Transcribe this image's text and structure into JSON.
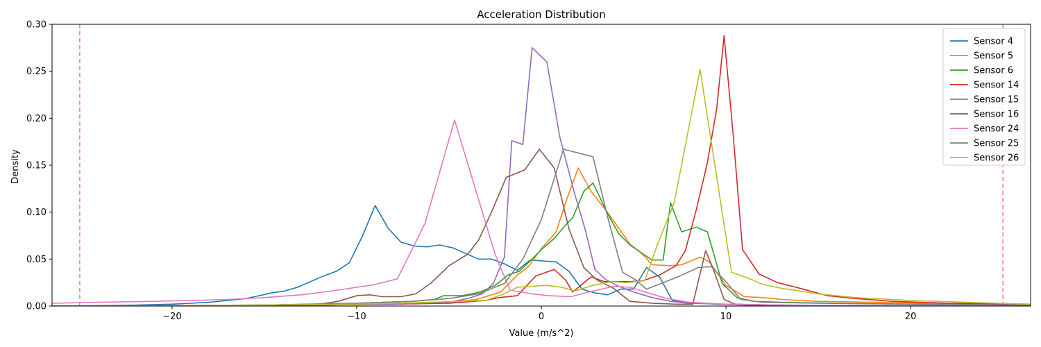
{
  "chart_data": {
    "type": "line",
    "title": "Acceleration Distribution",
    "xlabel": "Value (m/s^2)",
    "ylabel": "Density",
    "xlim": [
      -26.5,
      26.5
    ],
    "ylim": [
      0,
      0.3
    ],
    "xticks": [
      -20,
      -10,
      0,
      10,
      20
    ],
    "xtick_labels": [
      "−20",
      "−10",
      "0",
      "10",
      "20"
    ],
    "yticks": [
      0,
      0.05,
      0.1,
      0.15,
      0.2,
      0.25,
      0.3
    ],
    "ytick_labels": [
      "0.00",
      "0.05",
      "0.10",
      "0.15",
      "0.20",
      "0.25",
      "0.30"
    ],
    "grid": false,
    "legend_position": "top-right",
    "reference_lines": [
      {
        "x": -25,
        "color": "#f0807f",
        "style": "dashed"
      },
      {
        "x": 25,
        "color": "#f0807f",
        "style": "dashed"
      }
    ],
    "series": [
      {
        "name": "Sensor 4",
        "color": "#1f77b4",
        "points": [
          [
            -26.5,
            0.0
          ],
          [
            -22,
            0.001
          ],
          [
            -20,
            0.002
          ],
          [
            -18,
            0.004
          ],
          [
            -17,
            0.006
          ],
          [
            -16,
            0.008
          ],
          [
            -15.3,
            0.011
          ],
          [
            -14.6,
            0.014
          ],
          [
            -13.9,
            0.016
          ],
          [
            -13.2,
            0.02
          ],
          [
            -12.5,
            0.026
          ],
          [
            -11.8,
            0.032
          ],
          [
            -11.1,
            0.037
          ],
          [
            -10.4,
            0.046
          ],
          [
            -9.7,
            0.074
          ],
          [
            -9.0,
            0.107
          ],
          [
            -8.3,
            0.083
          ],
          [
            -7.6,
            0.068
          ],
          [
            -6.9,
            0.064
          ],
          [
            -6.2,
            0.063
          ],
          [
            -5.5,
            0.065
          ],
          [
            -4.8,
            0.062
          ],
          [
            -4.1,
            0.056
          ],
          [
            -3.4,
            0.05
          ],
          [
            -2.7,
            0.05
          ],
          [
            -2.0,
            0.045
          ],
          [
            -1.3,
            0.038
          ],
          [
            -0.6,
            0.049
          ],
          [
            0.1,
            0.048
          ],
          [
            0.8,
            0.047
          ],
          [
            1.5,
            0.037
          ],
          [
            2.2,
            0.018
          ],
          [
            2.9,
            0.014
          ],
          [
            3.6,
            0.012
          ],
          [
            4.3,
            0.018
          ],
          [
            5.0,
            0.018
          ],
          [
            5.7,
            0.041
          ],
          [
            6.4,
            0.031
          ],
          [
            7.1,
            0.006
          ],
          [
            7.8,
            0.004
          ],
          [
            8.5,
            0.003
          ],
          [
            9.5,
            0.002
          ],
          [
            11,
            0.001
          ],
          [
            15,
            0.0
          ],
          [
            26.5,
            0.0
          ]
        ]
      },
      {
        "name": "Sensor 5",
        "color": "#ff7f0e",
        "points": [
          [
            -26.5,
            0.0
          ],
          [
            -12,
            0.001
          ],
          [
            -8,
            0.002
          ],
          [
            -5,
            0.004
          ],
          [
            -3.5,
            0.007
          ],
          [
            -2.2,
            0.015
          ],
          [
            -1.3,
            0.033
          ],
          [
            -0.7,
            0.042
          ],
          [
            0,
            0.061
          ],
          [
            0.8,
            0.079
          ],
          [
            1.4,
            0.115
          ],
          [
            2.0,
            0.147
          ],
          [
            2.7,
            0.122
          ],
          [
            3.5,
            0.102
          ],
          [
            4.2,
            0.083
          ],
          [
            4.8,
            0.066
          ],
          [
            5.5,
            0.055
          ],
          [
            6.0,
            0.044
          ],
          [
            7.0,
            0.043
          ],
          [
            7.6,
            0.044
          ],
          [
            8.6,
            0.052
          ],
          [
            9.1,
            0.047
          ],
          [
            10,
            0.022
          ],
          [
            11,
            0.01
          ],
          [
            12,
            0.009
          ],
          [
            13,
            0.007
          ],
          [
            15,
            0.005
          ],
          [
            18,
            0.004
          ],
          [
            21,
            0.003
          ],
          [
            23,
            0.002
          ],
          [
            26.5,
            0.001
          ]
        ]
      },
      {
        "name": "Sensor 6",
        "color": "#2ca02c",
        "points": [
          [
            -26.5,
            0.0
          ],
          [
            -15,
            0.001
          ],
          [
            -10,
            0.003
          ],
          [
            -7,
            0.005
          ],
          [
            -5.8,
            0.007
          ],
          [
            -5.3,
            0.011
          ],
          [
            -4.3,
            0.011
          ],
          [
            -3.3,
            0.015
          ],
          [
            -2.5,
            0.022
          ],
          [
            -1.8,
            0.033
          ],
          [
            -1.2,
            0.037
          ],
          [
            -0.5,
            0.05
          ],
          [
            0,
            0.06
          ],
          [
            0.7,
            0.072
          ],
          [
            1.3,
            0.086
          ],
          [
            1.7,
            0.094
          ],
          [
            2.3,
            0.122
          ],
          [
            2.8,
            0.131
          ],
          [
            3.6,
            0.098
          ],
          [
            4.2,
            0.077
          ],
          [
            4.8,
            0.065
          ],
          [
            5.4,
            0.057
          ],
          [
            6.0,
            0.049
          ],
          [
            6.6,
            0.049
          ],
          [
            7.0,
            0.11
          ],
          [
            7.6,
            0.079
          ],
          [
            8.4,
            0.084
          ],
          [
            9.0,
            0.079
          ],
          [
            9.8,
            0.024
          ],
          [
            10.6,
            0.009
          ],
          [
            11.5,
            0.005
          ],
          [
            13,
            0.004
          ],
          [
            16,
            0.003
          ],
          [
            20,
            0.002
          ],
          [
            26.5,
            0.001
          ]
        ]
      },
      {
        "name": "Sensor 14",
        "color": "#d62728",
        "points": [
          [
            -26.5,
            0.0
          ],
          [
            -12,
            0.001
          ],
          [
            -8,
            0.002
          ],
          [
            -5,
            0.003
          ],
          [
            -3,
            0.006
          ],
          [
            -2.3,
            0.009
          ],
          [
            -1.3,
            0.011
          ],
          [
            -0.3,
            0.032
          ],
          [
            0.7,
            0.039
          ],
          [
            1.3,
            0.028
          ],
          [
            1.7,
            0.015
          ],
          [
            2.7,
            0.031
          ],
          [
            3.4,
            0.026
          ],
          [
            4.0,
            0.026
          ],
          [
            4.8,
            0.026
          ],
          [
            5.5,
            0.027
          ],
          [
            6.4,
            0.033
          ],
          [
            7.3,
            0.043
          ],
          [
            7.8,
            0.059
          ],
          [
            8.4,
            0.103
          ],
          [
            9.0,
            0.153
          ],
          [
            9.5,
            0.21
          ],
          [
            9.9,
            0.288
          ],
          [
            10.4,
            0.18
          ],
          [
            10.9,
            0.06
          ],
          [
            11.8,
            0.034
          ],
          [
            12.8,
            0.025
          ],
          [
            14,
            0.019
          ],
          [
            15.5,
            0.011
          ],
          [
            17,
            0.008
          ],
          [
            19,
            0.005
          ],
          [
            22,
            0.003
          ],
          [
            26.5,
            0.002
          ]
        ]
      },
      {
        "name": "Sensor 15",
        "color": "#9467bd",
        "points": [
          [
            -26.5,
            0.0
          ],
          [
            -12,
            0.001
          ],
          [
            -8,
            0.002
          ],
          [
            -5,
            0.004
          ],
          [
            -4,
            0.008
          ],
          [
            -3.2,
            0.013
          ],
          [
            -2.6,
            0.024
          ],
          [
            -2.0,
            0.052
          ],
          [
            -1.6,
            0.176
          ],
          [
            -1.0,
            0.172
          ],
          [
            -0.5,
            0.275
          ],
          [
            0.3,
            0.26
          ],
          [
            1.0,
            0.18
          ],
          [
            1.8,
            0.12
          ],
          [
            2.4,
            0.08
          ],
          [
            2.9,
            0.039
          ],
          [
            3.5,
            0.028
          ],
          [
            4.2,
            0.021
          ],
          [
            5.0,
            0.015
          ],
          [
            6.0,
            0.009
          ],
          [
            7.0,
            0.005
          ],
          [
            8.0,
            0.003
          ],
          [
            10,
            0.002
          ],
          [
            13,
            0.001
          ],
          [
            26.5,
            0.0
          ]
        ]
      },
      {
        "name": "Sensor 16",
        "color": "#8c564b",
        "points": [
          [
            -26.5,
            0.0
          ],
          [
            -14,
            0.001
          ],
          [
            -12,
            0.002
          ],
          [
            -11,
            0.005
          ],
          [
            -10,
            0.011
          ],
          [
            -9.3,
            0.012
          ],
          [
            -8.6,
            0.01
          ],
          [
            -7.6,
            0.01
          ],
          [
            -6.8,
            0.013
          ],
          [
            -6.0,
            0.024
          ],
          [
            -5.0,
            0.043
          ],
          [
            -4.0,
            0.055
          ],
          [
            -3.4,
            0.07
          ],
          [
            -2.7,
            0.1
          ],
          [
            -1.9,
            0.137
          ],
          [
            -0.9,
            0.145
          ],
          [
            -0.1,
            0.167
          ],
          [
            0.7,
            0.147
          ],
          [
            1.5,
            0.082
          ],
          [
            2.3,
            0.041
          ],
          [
            3.0,
            0.028
          ],
          [
            3.9,
            0.019
          ],
          [
            4.8,
            0.005
          ],
          [
            6.0,
            0.003
          ],
          [
            7.3,
            0.002
          ],
          [
            8.2,
            0.002
          ],
          [
            8.9,
            0.059
          ],
          [
            9.3,
            0.04
          ],
          [
            9.9,
            0.007
          ],
          [
            10.5,
            0.002
          ],
          [
            12,
            0.001
          ],
          [
            15,
            0.0
          ],
          [
            26.5,
            0.0
          ]
        ]
      },
      {
        "name": "Sensor 24",
        "color": "#e377c2",
        "points": [
          [
            -26.5,
            0.003
          ],
          [
            -24,
            0.004
          ],
          [
            -21,
            0.005
          ],
          [
            -19,
            0.006
          ],
          [
            -17,
            0.007
          ],
          [
            -15,
            0.009
          ],
          [
            -13,
            0.012
          ],
          [
            -11,
            0.017
          ],
          [
            -9,
            0.023
          ],
          [
            -7.8,
            0.029
          ],
          [
            -6.3,
            0.088
          ],
          [
            -4.7,
            0.198
          ],
          [
            -3.5,
            0.12
          ],
          [
            -2.5,
            0.055
          ],
          [
            -1.7,
            0.017
          ],
          [
            -0.5,
            0.013
          ],
          [
            0.4,
            0.011
          ],
          [
            1.6,
            0.01
          ],
          [
            2.6,
            0.015
          ],
          [
            3.9,
            0.021
          ],
          [
            4.8,
            0.02
          ],
          [
            5.8,
            0.014
          ],
          [
            6.8,
            0.008
          ],
          [
            8,
            0.004
          ],
          [
            10,
            0.002
          ],
          [
            13,
            0.001
          ],
          [
            26.5,
            0.0
          ]
        ]
      },
      {
        "name": "Sensor 25",
        "color": "#7f7f7f",
        "points": [
          [
            -26.5,
            0.0
          ],
          [
            -15,
            0.001
          ],
          [
            -10,
            0.003
          ],
          [
            -7,
            0.005
          ],
          [
            -5,
            0.008
          ],
          [
            -3.4,
            0.013
          ],
          [
            -2,
            0.024
          ],
          [
            -1,
            0.05
          ],
          [
            0,
            0.092
          ],
          [
            1.2,
            0.167
          ],
          [
            2.8,
            0.159
          ],
          [
            3.6,
            0.094
          ],
          [
            4.4,
            0.036
          ],
          [
            5.1,
            0.028
          ],
          [
            5.7,
            0.018
          ],
          [
            6.6,
            0.025
          ],
          [
            7.5,
            0.032
          ],
          [
            8.5,
            0.041
          ],
          [
            9.2,
            0.042
          ],
          [
            10,
            0.026
          ],
          [
            10.8,
            0.007
          ],
          [
            12,
            0.004
          ],
          [
            15,
            0.003
          ],
          [
            20,
            0.002
          ],
          [
            26.5,
            0.001
          ]
        ]
      },
      {
        "name": "Sensor 26",
        "color": "#bcbd22",
        "points": [
          [
            -26.5,
            0.0
          ],
          [
            -15,
            0.001
          ],
          [
            -10,
            0.002
          ],
          [
            -6,
            0.004
          ],
          [
            -3,
            0.006
          ],
          [
            -2,
            0.013
          ],
          [
            -1.3,
            0.02
          ],
          [
            -0.5,
            0.021
          ],
          [
            0.3,
            0.022
          ],
          [
            1.1,
            0.02
          ],
          [
            1.8,
            0.016
          ],
          [
            2.8,
            0.022
          ],
          [
            3.8,
            0.026
          ],
          [
            4.6,
            0.025
          ],
          [
            5.6,
            0.027
          ],
          [
            6.3,
            0.066
          ],
          [
            7.2,
            0.11
          ],
          [
            8.6,
            0.252
          ],
          [
            9.4,
            0.15
          ],
          [
            10.3,
            0.036
          ],
          [
            11.3,
            0.029
          ],
          [
            12,
            0.023
          ],
          [
            13,
            0.019
          ],
          [
            15,
            0.013
          ],
          [
            17,
            0.009
          ],
          [
            20,
            0.006
          ],
          [
            23,
            0.004
          ],
          [
            26.5,
            0.002
          ]
        ]
      }
    ]
  }
}
